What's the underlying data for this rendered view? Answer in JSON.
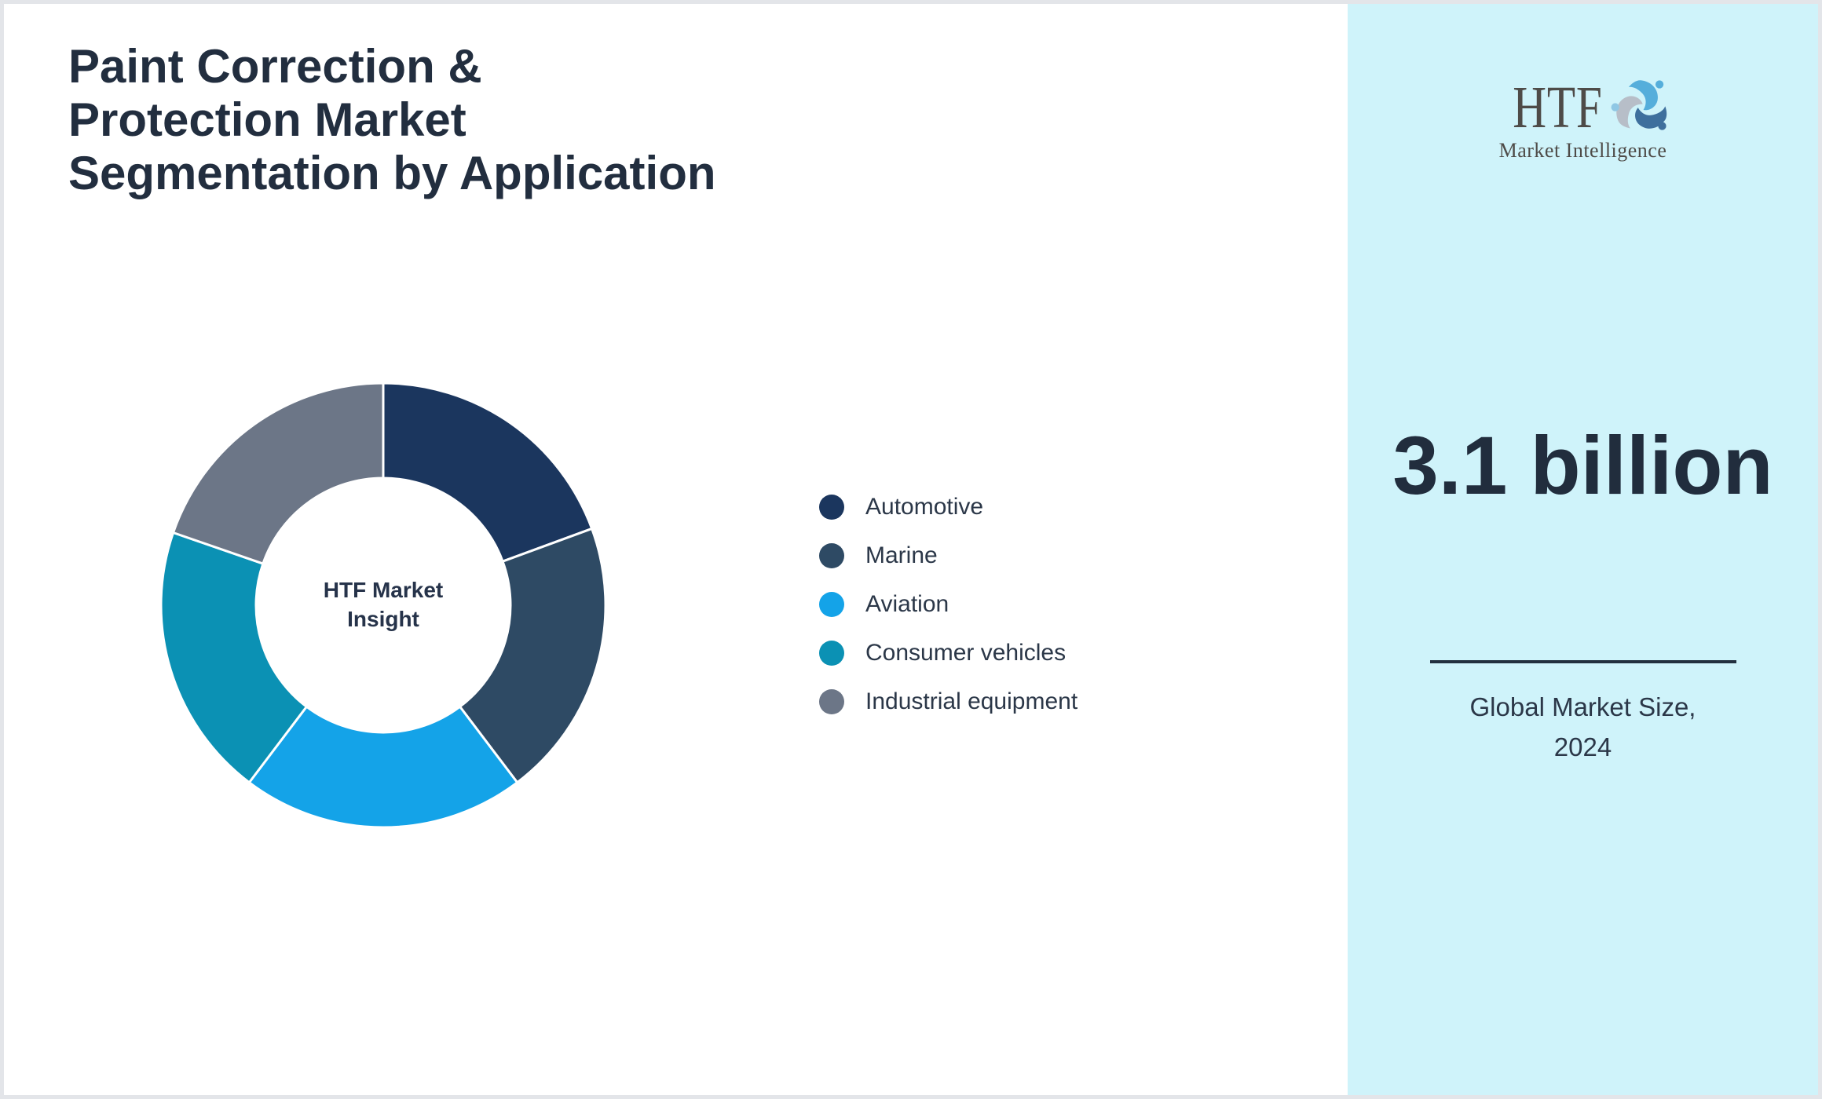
{
  "header": {
    "title": "Paint Correction & Protection Market Segmentation by Application"
  },
  "chart_data": {
    "type": "pie",
    "subtype": "donut",
    "title": "Paint Correction & Protection Market Segmentation by Application",
    "center_label": "HTF Market Insight",
    "legend_position": "right",
    "units": "percent (estimated from arc angles, no data labels shown)",
    "start_angle_deg": 0,
    "direction": "clockwise",
    "inner_radius_ratio": 0.57,
    "segments": [
      {
        "label": "Automotive",
        "value": 19.4,
        "color": "#1b365e"
      },
      {
        "label": "Marine",
        "value": 20.3,
        "color": "#2e4a64"
      },
      {
        "label": "Aviation",
        "value": 20.6,
        "color": "#14a3e8"
      },
      {
        "label": "Consumer vehicles",
        "value": 20.0,
        "color": "#0b91b4"
      },
      {
        "label": "Industrial equipment",
        "value": 19.7,
        "color": "#6c7687"
      }
    ]
  },
  "sidebar": {
    "background_color": "#cff3fa",
    "logo": {
      "text": "HTF",
      "subtitle": "Market Intelligence",
      "emblem": "three-dolphins-icon"
    },
    "market_size": {
      "value": "3.1 billion",
      "caption": "Global Market Size, 2024"
    }
  },
  "style": {
    "page_border_color": "#e3e5e9",
    "title_color": "#222e3f",
    "text_color": "#2b3748",
    "accent_dark": "#212d3d"
  }
}
